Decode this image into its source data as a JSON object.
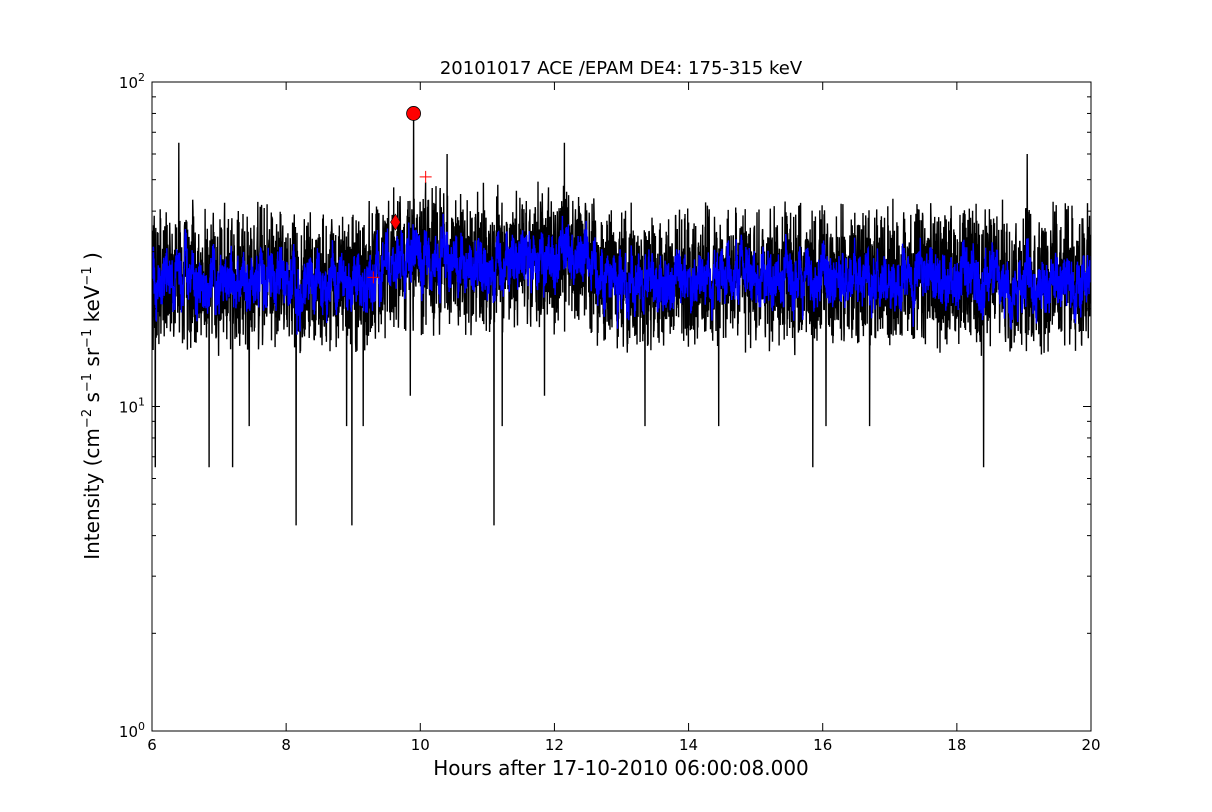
{
  "chart_data": {
    "type": "line",
    "title": "20101017 ACE /EPAM DE4: 175-315 keV",
    "xlabel": "Hours after 17-10-2010 06:00:08.000",
    "ylabel": {
      "prefix": "Intensity (cm",
      "exp1": "−2",
      "mid1": " s",
      "exp2": "−1",
      "mid2": " sr",
      "exp3": "−1",
      "mid3": " keV",
      "exp4": "−1",
      "suffix": " )"
    },
    "xlim": [
      6,
      20
    ],
    "ylim": [
      1,
      100
    ],
    "yscale": "log",
    "grid": false,
    "x_ticks": [
      "6",
      "8",
      "10",
      "12",
      "14",
      "16",
      "18",
      "20"
    ],
    "y_ticks": [
      {
        "base": "10",
        "exp": "0"
      },
      {
        "base": "10",
        "exp": "1"
      },
      {
        "base": "10",
        "exp": "2"
      }
    ],
    "series": [
      {
        "color": "#000000",
        "sample_hours": 0.0033,
        "baseline": 27,
        "noise_low": 13,
        "noise_high": 48,
        "spikes": [
          {
            "x": 6.05,
            "y": 6.5
          },
          {
            "x": 6.4,
            "y": 65
          },
          {
            "x": 6.85,
            "y": 6.5
          },
          {
            "x": 7.2,
            "y": 6.5
          },
          {
            "x": 7.45,
            "y": 8.7
          },
          {
            "x": 8.15,
            "y": 4.3
          },
          {
            "x": 8.9,
            "y": 8.7
          },
          {
            "x": 8.98,
            "y": 4.3
          },
          {
            "x": 9.15,
            "y": 8.7
          },
          {
            "x": 9.85,
            "y": 10.8
          },
          {
            "x": 9.9,
            "y": 80
          },
          {
            "x": 10.4,
            "y": 60
          },
          {
            "x": 11.1,
            "y": 4.3
          },
          {
            "x": 11.22,
            "y": 8.7
          },
          {
            "x": 11.85,
            "y": 10.8
          },
          {
            "x": 12.15,
            "y": 65
          },
          {
            "x": 13.35,
            "y": 8.7
          },
          {
            "x": 14.45,
            "y": 8.7
          },
          {
            "x": 15.85,
            "y": 6.5
          },
          {
            "x": 16.05,
            "y": 8.7
          },
          {
            "x": 16.7,
            "y": 8.7
          },
          {
            "x": 18.4,
            "y": 6.5
          },
          {
            "x": 19.05,
            "y": 60
          }
        ]
      },
      {
        "color": "#0000ff",
        "smoothing": 5
      }
    ],
    "markers": [
      {
        "shape": "circle",
        "x": 9.9,
        "y": 80,
        "color": "#ff0000"
      },
      {
        "shape": "diamond",
        "x": 9.63,
        "y": 37,
        "color": "#ff0000"
      },
      {
        "shape": "plus",
        "x": 10.08,
        "y": 51,
        "color": "#ff0000"
      },
      {
        "shape": "plus",
        "x": 9.3,
        "y": 25,
        "color": "#ff0000"
      }
    ]
  }
}
